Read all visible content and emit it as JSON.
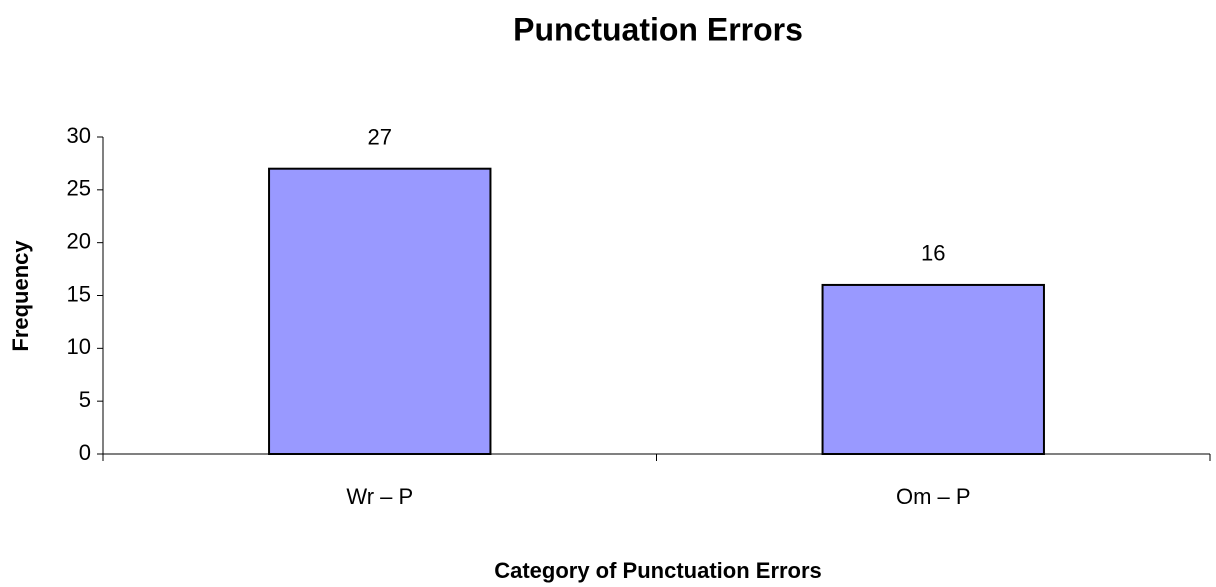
{
  "chart_data": {
    "type": "bar",
    "title": "Punctuation Errors",
    "x_label": "Category of Punctuation Errors",
    "y_label": "Frequency",
    "categories": [
      "Wr – P",
      "Om – P"
    ],
    "values": [
      27,
      16
    ],
    "color": "#9999ff",
    "ylim": [
      0,
      30
    ],
    "yticks": [
      0,
      5,
      10,
      15,
      20,
      25,
      30
    ],
    "grid": false
  }
}
